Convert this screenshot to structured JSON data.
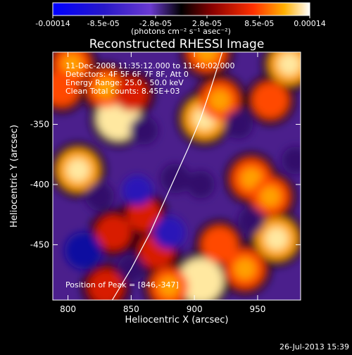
{
  "chart_data": {
    "type": "heatmap",
    "title": "Reconstructed RHESSI Image",
    "xlabel": "Heliocentric X (arcsec)",
    "ylabel": "Heliocentric Y (arcsec)",
    "xlim": [
      788,
      984
    ],
    "ylim": [
      -496,
      -290
    ],
    "x_ticks": [
      "800",
      "850",
      "900",
      "950"
    ],
    "y_ticks": [
      "-350",
      "-400",
      "-450"
    ],
    "x_tick_values": [
      800,
      850,
      900,
      950
    ],
    "y_tick_values": [
      -350,
      -400,
      -450
    ],
    "colorbar": {
      "tick_labels": [
        "-0.00014",
        "-8.5e-05",
        "-2.8e-05",
        "2.8e-05",
        "8.5e-05",
        "0.00014"
      ],
      "tick_values": [
        -0.00014,
        -8.5e-05,
        -2.8e-05,
        2.8e-05,
        8.5e-05,
        0.00014
      ],
      "range": [
        -0.00014,
        0.00014
      ],
      "units_label": "(photons cm⁻² s⁻¹ asec⁻²)"
    },
    "annotations": {
      "time_range": "11-Dec-2008 11:35:12.000 to 11:40:02.000",
      "detectors": "Detectors: 4F 5F 6F 7F 8F, Att 0",
      "energy_range": "Energy Range: 25.0 - 50.0 keV",
      "clean_counts": "Clean    Total counts: 8.45E+03",
      "peak_position": "Position of Peak = [846,-347]"
    },
    "limb_curve": [
      [
        835,
        -496
      ],
      [
        850,
        -470
      ],
      [
        865,
        -440
      ],
      [
        880,
        -405
      ],
      [
        895,
        -370
      ],
      [
        905,
        -345
      ],
      [
        913,
        -320
      ],
      [
        922,
        -290
      ]
    ],
    "sources": [
      {
        "x": 803,
        "y": -300,
        "intensity": 8.5e-05
      },
      {
        "x": 808,
        "y": -388,
        "intensity": 0.00012
      },
      {
        "x": 795,
        "y": -320,
        "intensity": 8e-05
      },
      {
        "x": 840,
        "y": -345,
        "intensity": 0.00013
      },
      {
        "x": 830,
        "y": -320,
        "intensity": 9e-05
      },
      {
        "x": 836,
        "y": -440,
        "intensity": 7e-05
      },
      {
        "x": 850,
        "y": -325,
        "intensity": 6e-05
      },
      {
        "x": 910,
        "y": -290,
        "intensity": 0.0001
      },
      {
        "x": 908,
        "y": -345,
        "intensity": 0.00012
      },
      {
        "x": 920,
        "y": -330,
        "intensity": 0.0001
      },
      {
        "x": 975,
        "y": -300,
        "intensity": 0.00011
      },
      {
        "x": 960,
        "y": -330,
        "intensity": 8e-05
      },
      {
        "x": 945,
        "y": -395,
        "intensity": 0.0001
      },
      {
        "x": 960,
        "y": -410,
        "intensity": 9e-05
      },
      {
        "x": 965,
        "y": -445,
        "intensity": 0.00012
      },
      {
        "x": 920,
        "y": -450,
        "intensity": 8e-05
      },
      {
        "x": 905,
        "y": -480,
        "intensity": 0.00014
      },
      {
        "x": 940,
        "y": -470,
        "intensity": 0.0001
      },
      {
        "x": 880,
        "y": -485,
        "intensity": 9e-05
      },
      {
        "x": 870,
        "y": -455,
        "intensity": 7e-05
      },
      {
        "x": 830,
        "y": -485,
        "intensity": 7e-05
      },
      {
        "x": 860,
        "y": -425,
        "intensity": 6e-05
      },
      {
        "x": 812,
        "y": -455,
        "intensity": -0.00014
      },
      {
        "x": 825,
        "y": -410,
        "intensity": -6e-05
      },
      {
        "x": 855,
        "y": -405,
        "intensity": -8e-05
      },
      {
        "x": 880,
        "y": -440,
        "intensity": -0.0001
      },
      {
        "x": 860,
        "y": -355,
        "intensity": -6e-05
      },
      {
        "x": 885,
        "y": -395,
        "intensity": -7e-05
      },
      {
        "x": 905,
        "y": -400,
        "intensity": -5e-05
      },
      {
        "x": 935,
        "y": -350,
        "intensity": -6e-05
      },
      {
        "x": 980,
        "y": -380,
        "intensity": -5e-05
      },
      {
        "x": 850,
        "y": -470,
        "intensity": -5e-05
      },
      {
        "x": 945,
        "y": -430,
        "intensity": -4e-05
      }
    ]
  },
  "footer": {
    "timestamp": "26-Jul-2013 15:39"
  }
}
